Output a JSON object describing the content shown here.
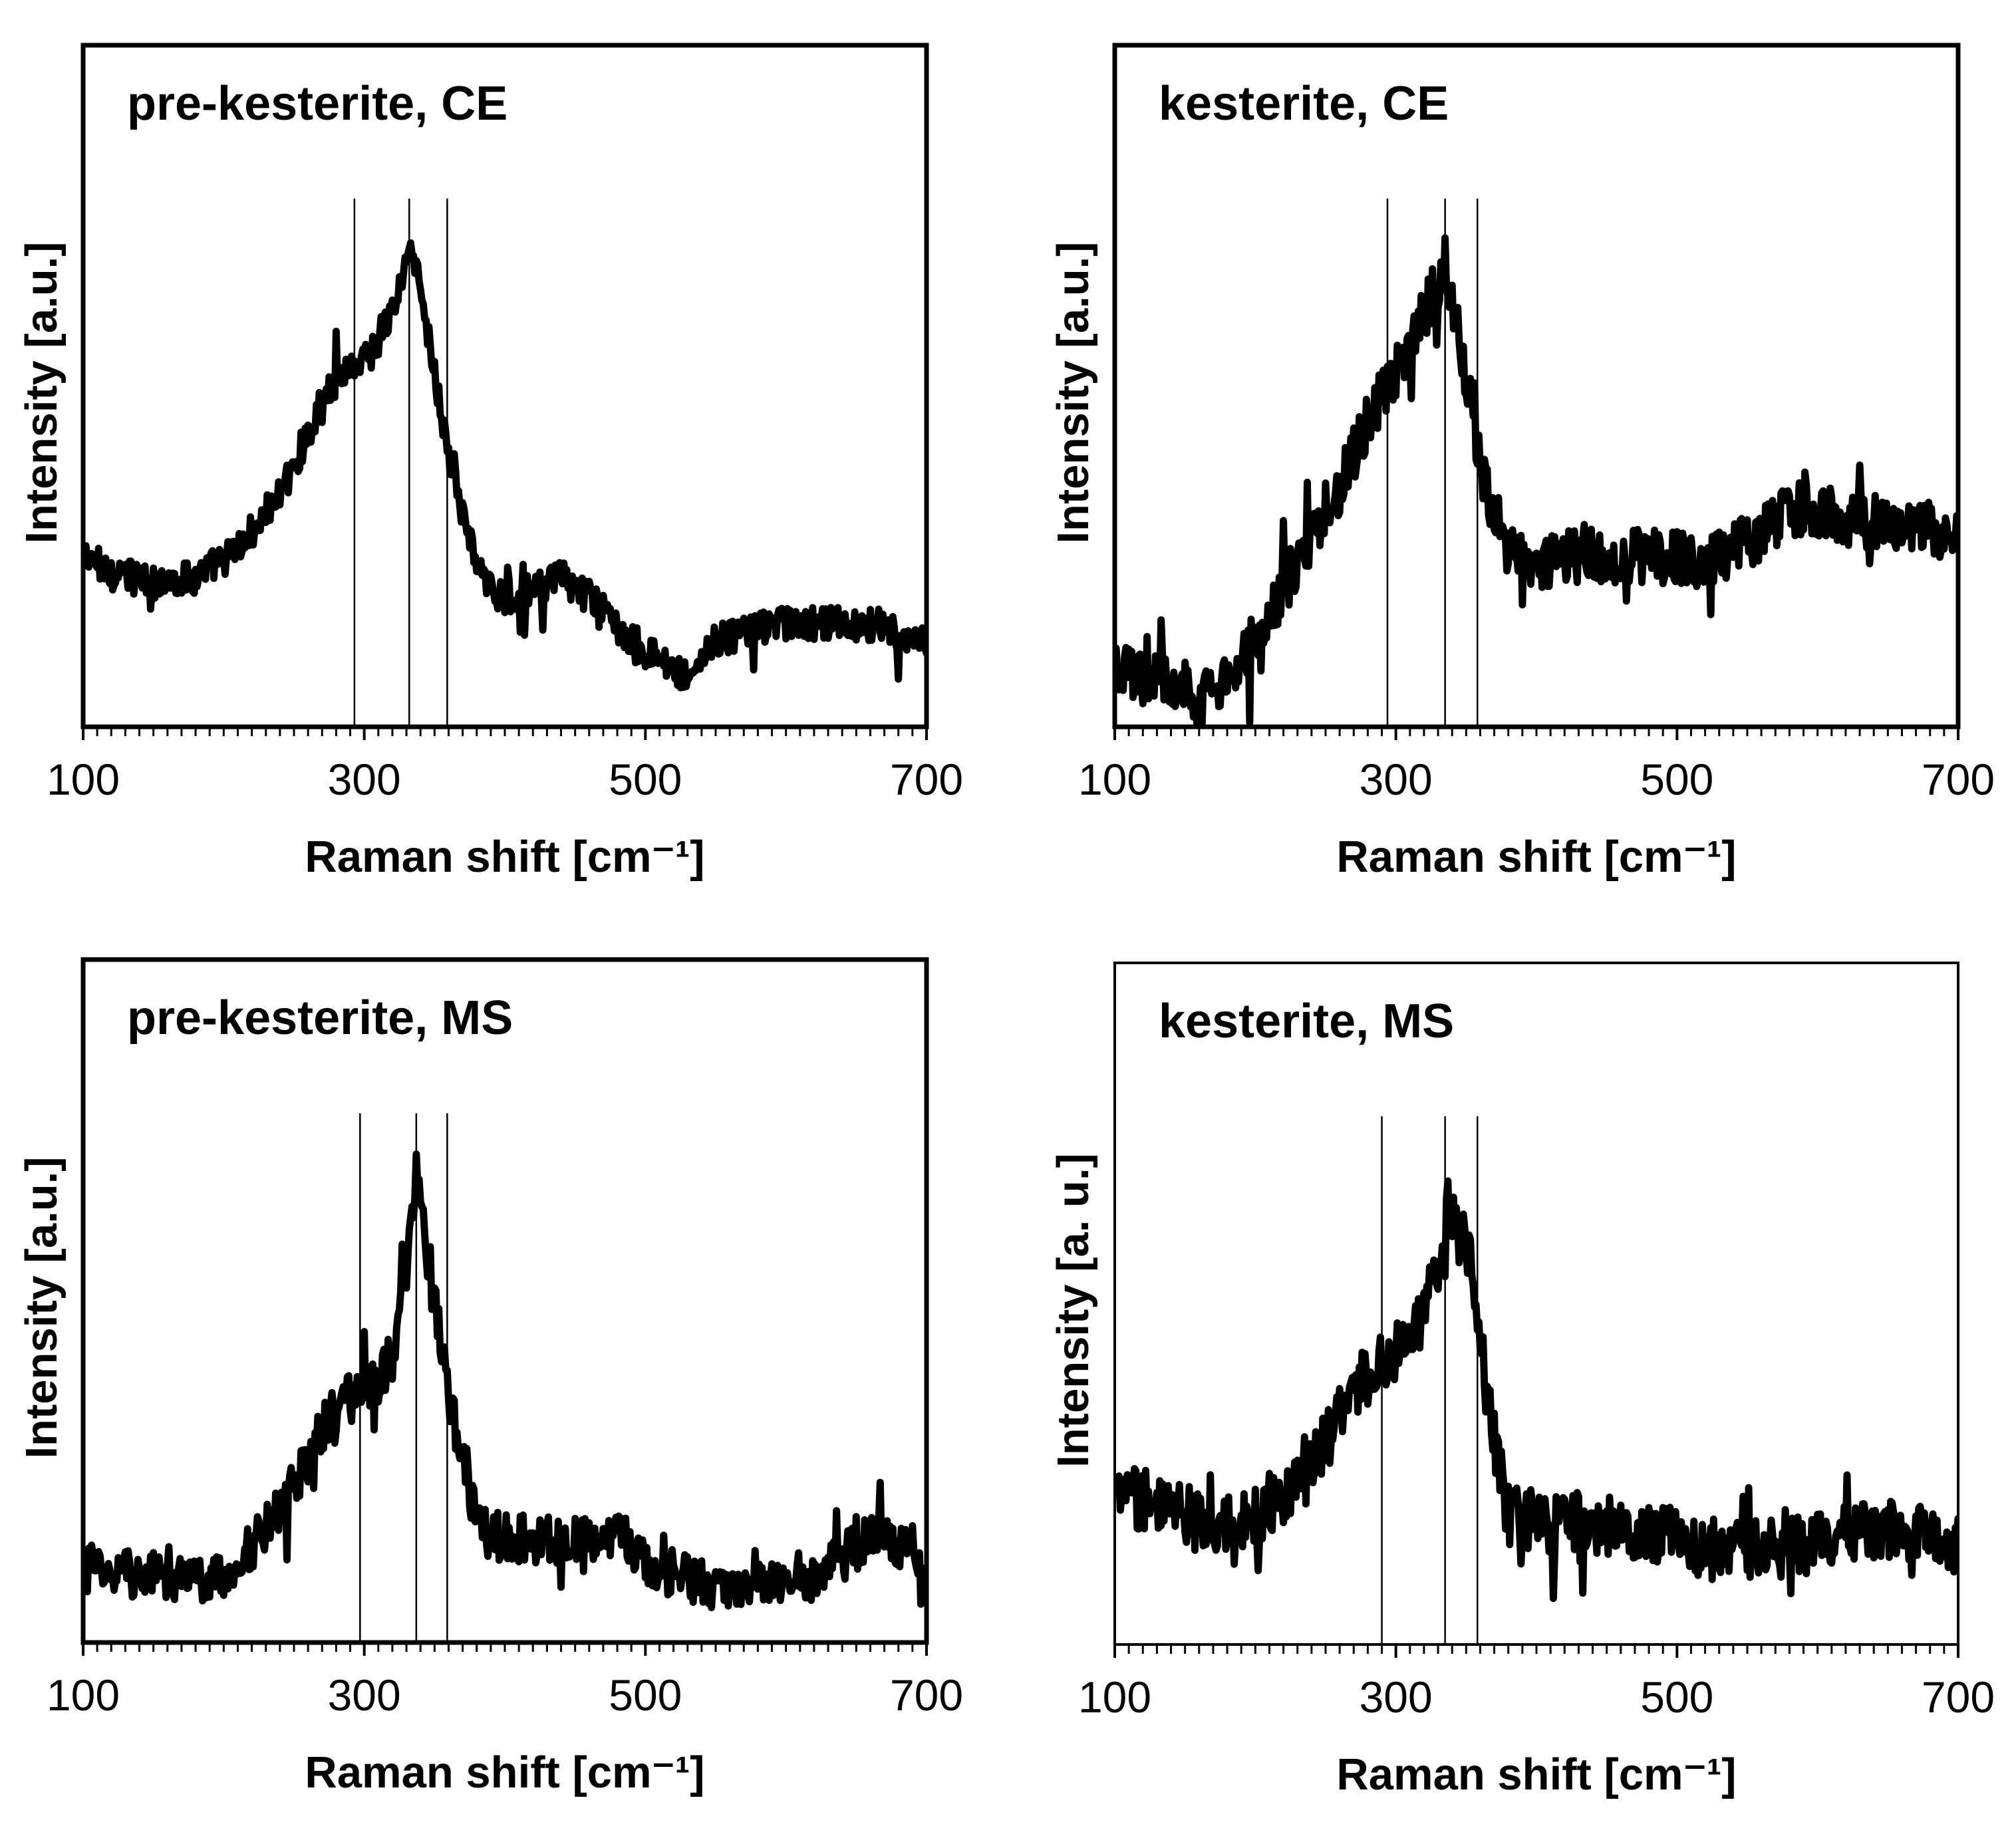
{
  "figure": {
    "description_free": true
  },
  "chart_data": [
    {
      "type": "line",
      "title": "pre-kesterite, CE",
      "xlabel": "Raman shift [cm⁻¹]",
      "ylabel": "Intensity [a.u.]",
      "xlim": [
        100,
        700
      ],
      "ylim": [
        0,
        1
      ],
      "xticks": [
        100,
        300,
        500,
        700
      ],
      "xtick_labels": [
        "100",
        "300",
        "500",
        "700"
      ],
      "minor_tick_step": 10,
      "reference_lines": [
        293,
        332,
        359
      ],
      "series": [
        {
          "name": "pre-kesterite, CE",
          "noise": 0.025,
          "x": [
            100,
            120,
            150,
            180,
            210,
            240,
            260,
            275,
            290,
            305,
            320,
            330,
            335,
            340,
            350,
            360,
            370,
            385,
            400,
            420,
            440,
            460,
            480,
            500,
            520,
            530,
            545,
            570,
            600,
            630,
            660,
            700
          ],
          "y": [
            0.25,
            0.23,
            0.21,
            0.22,
            0.26,
            0.34,
            0.43,
            0.5,
            0.53,
            0.55,
            0.61,
            0.68,
            0.7,
            0.64,
            0.52,
            0.4,
            0.31,
            0.21,
            0.19,
            0.2,
            0.22,
            0.19,
            0.15,
            0.11,
            0.09,
            0.07,
            0.12,
            0.14,
            0.15,
            0.15,
            0.15,
            0.12
          ]
        }
      ]
    },
    {
      "type": "line",
      "title": "kesterite, CE",
      "xlabel": "Raman shift [cm⁻¹]",
      "ylabel": "Intensity [a.u.]",
      "xlim": [
        100,
        700
      ],
      "ylim": [
        0,
        1
      ],
      "xticks": [
        100,
        300,
        500,
        700
      ],
      "xtick_labels": [
        "100",
        "300",
        "500",
        "700"
      ],
      "minor_tick_step": 10,
      "reference_lines": [
        294,
        335,
        358
      ],
      "series": [
        {
          "name": "kesterite, CE",
          "noise": 0.04,
          "x": [
            100,
            130,
            160,
            180,
            200,
            230,
            260,
            280,
            295,
            310,
            325,
            335,
            345,
            355,
            365,
            380,
            395,
            420,
            450,
            480,
            500,
            520,
            550,
            580,
            600,
            630,
            660,
            700
          ],
          "y": [
            0.08,
            0.07,
            0.05,
            0.06,
            0.13,
            0.24,
            0.35,
            0.45,
            0.5,
            0.56,
            0.63,
            0.68,
            0.58,
            0.45,
            0.34,
            0.26,
            0.24,
            0.25,
            0.25,
            0.25,
            0.25,
            0.24,
            0.27,
            0.32,
            0.32,
            0.3,
            0.3,
            0.28
          ]
        }
      ]
    },
    {
      "type": "line",
      "title": "pre-kesterite, MS",
      "xlabel": "Raman shift [cm⁻¹]",
      "ylabel": "Intensity [a.u.]",
      "xlim": [
        100,
        700
      ],
      "ylim": [
        0,
        1
      ],
      "xticks": [
        100,
        300,
        500,
        700
      ],
      "xtick_labels": [
        "100",
        "300",
        "500",
        "700"
      ],
      "minor_tick_step": 10,
      "reference_lines": [
        297,
        337,
        359
      ],
      "series": [
        {
          "name": "pre-kesterite, MS",
          "noise": 0.035,
          "x": [
            100,
            140,
            180,
            200,
            220,
            240,
            260,
            275,
            290,
            305,
            320,
            330,
            337,
            345,
            355,
            365,
            375,
            385,
            420,
            460,
            480,
            500,
            520,
            550,
            580,
            620,
            660,
            690,
            700
          ],
          "y": [
            0.11,
            0.1,
            0.09,
            0.1,
            0.14,
            0.2,
            0.27,
            0.33,
            0.36,
            0.37,
            0.42,
            0.55,
            0.7,
            0.56,
            0.43,
            0.31,
            0.22,
            0.16,
            0.15,
            0.15,
            0.16,
            0.12,
            0.1,
            0.08,
            0.09,
            0.1,
            0.15,
            0.14,
            0.06
          ]
        }
      ]
    },
    {
      "type": "line",
      "title": "kesterite, MS",
      "xlabel": "Raman shift [cm⁻¹]",
      "ylabel": "Intensity [a. u.]",
      "xlim": [
        100,
        700
      ],
      "ylim": [
        0,
        1
      ],
      "xticks": [
        100,
        300,
        500,
        700
      ],
      "xtick_labels": [
        "100",
        "300",
        "500",
        "700"
      ],
      "minor_tick_step": 10,
      "reference_lines": [
        290,
        335,
        358
      ],
      "series": [
        {
          "name": "kesterite, MS",
          "noise": 0.045,
          "x": [
            100,
            130,
            160,
            190,
            220,
            250,
            270,
            290,
            305,
            320,
            330,
            337,
            345,
            352,
            360,
            370,
            380,
            400,
            430,
            460,
            500,
            520,
            560,
            600,
            650,
            700
          ],
          "y": [
            0.22,
            0.21,
            0.18,
            0.18,
            0.22,
            0.3,
            0.37,
            0.42,
            0.44,
            0.48,
            0.56,
            0.65,
            0.58,
            0.6,
            0.44,
            0.3,
            0.19,
            0.18,
            0.18,
            0.17,
            0.16,
            0.14,
            0.14,
            0.15,
            0.17,
            0.15
          ]
        }
      ]
    }
  ]
}
